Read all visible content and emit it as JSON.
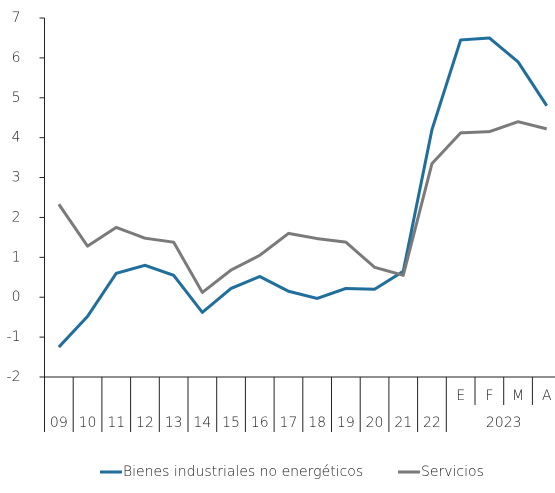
{
  "chart_data": {
    "type": "line",
    "categories": [
      "09",
      "10",
      "11",
      "12",
      "13",
      "14",
      "15",
      "16",
      "17",
      "18",
      "19",
      "20",
      "21",
      "22",
      "E",
      "F",
      "M",
      "A"
    ],
    "category_groups": [
      {
        "label": "2023",
        "first": 14,
        "last": 17
      }
    ],
    "series": [
      {
        "name": "Bienes industriales no energéticos",
        "color": "#1f6e9c",
        "values": [
          -1.25,
          -0.48,
          0.6,
          0.8,
          0.55,
          -0.38,
          0.22,
          0.52,
          0.15,
          -0.03,
          0.22,
          0.2,
          0.65,
          4.2,
          6.45,
          6.5,
          5.9,
          4.8
        ]
      },
      {
        "name": "Servicios",
        "color": "#7a7a7a",
        "values": [
          2.33,
          1.28,
          1.75,
          1.48,
          1.38,
          0.12,
          0.68,
          1.05,
          1.6,
          1.47,
          1.38,
          0.75,
          0.55,
          3.35,
          4.12,
          4.15,
          4.4,
          4.22
        ]
      }
    ],
    "ylim": [
      -2,
      7
    ],
    "yticks": [
      -2,
      -1,
      0,
      1,
      2,
      3,
      4,
      5,
      6,
      7
    ],
    "legend": "bottom"
  }
}
